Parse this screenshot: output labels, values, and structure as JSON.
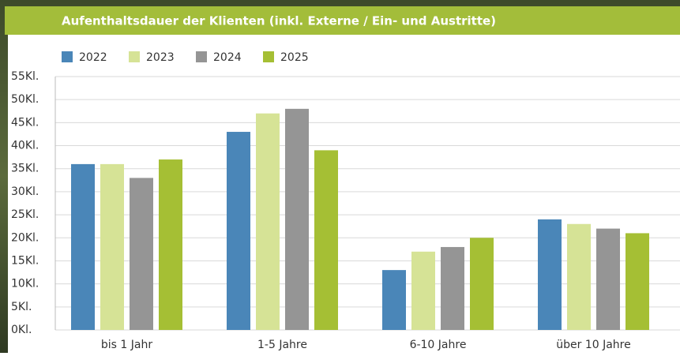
{
  "chart_data": {
    "type": "bar",
    "title": "Aufenthaltsdauer der Klienten (inkl. Externe / Ein- und Austritte)",
    "categories": [
      "bis 1 Jahr",
      "1-5 Jahre",
      "6-10 Jahre",
      "über 10 Jahre"
    ],
    "series": [
      {
        "name": "2022",
        "color": "#4a86b8",
        "values": [
          36,
          43,
          13,
          24
        ]
      },
      {
        "name": "2023",
        "color": "#d6e396",
        "values": [
          36,
          47,
          17,
          23
        ]
      },
      {
        "name": "2024",
        "color": "#959595",
        "values": [
          33,
          48,
          18,
          22
        ]
      },
      {
        "name": "2025",
        "color": "#a5bf34",
        "values": [
          37,
          39,
          20,
          21
        ]
      }
    ],
    "ylim": [
      0,
      55
    ],
    "yticks": [
      {
        "value": 0,
        "label": "0Kl."
      },
      {
        "value": 5,
        "label": "5Kl."
      },
      {
        "value": 10,
        "label": "10Kl."
      },
      {
        "value": 15,
        "label": "15Kl."
      },
      {
        "value": 20,
        "label": "20Kl."
      },
      {
        "value": 25,
        "label": "25Kl."
      },
      {
        "value": 30,
        "label": "30Kl."
      },
      {
        "value": 35,
        "label": "35Kl."
      },
      {
        "value": 40,
        "label": "40Kl."
      },
      {
        "value": 45,
        "label": "45Kl."
      },
      {
        "value": 50,
        "label": "50Kl."
      },
      {
        "value": 55,
        "label": "55Kl."
      }
    ],
    "grid": true,
    "legend": "top"
  }
}
